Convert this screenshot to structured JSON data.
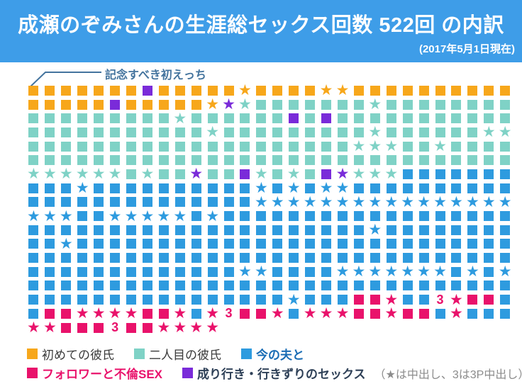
{
  "header": {
    "title": "成瀬のぞみさんの生涯総セックス回数 522回 の内訳",
    "subtitle": "(2017年5月1日現在)",
    "bg_color": "#3E9DE8"
  },
  "annotation": {
    "label": "記念すべき初えっち"
  },
  "colors": {
    "orange": "#F7A71B",
    "teal": "#7FD2C6",
    "blue": "#2E9BDF",
    "pink": "#E9126B",
    "purple": "#7A2BD9",
    "header_blue": "#3E9DE8",
    "annotation_blue": "#44749E",
    "legend_dark": "#3A3A3A",
    "legend_husband": "#1A6DB5",
    "legend_casual": "#2E4057",
    "note_gray": "#8C8C8C"
  },
  "chart_data": {
    "type": "pictogram-waffle",
    "title": "成瀬のぞみさんの生涯総セックス回数 522回 の内訳",
    "as_of": "2017年5月1日現在",
    "total": 522,
    "columns": 30,
    "rows_full": 17,
    "last_row_count": 12,
    "cell_code_legend": {
      "o": "orange square (初めての彼氏)",
      "O": "orange star (初めての彼氏・中出し)",
      "t": "teal square (二人目の彼氏)",
      "T": "teal star (二人目の彼氏・中出し)",
      "b": "blue square (今の夫と)",
      "B": "blue star (今の夫と・中出し)",
      "p": "pink square (フォロワーと不倫SEX)",
      "P": "pink star (フォロワーと不倫SEX・中出し)",
      "v": "purple square (成り行き・行きずりのセックス)",
      "V": "purple star (成り行き・行きずりのセックス・中出し)",
      "3": "pink digit 3 (3P中出し)"
    },
    "rows": [
      "ooooooovoooooOooooOOoooooooooo",
      "ooooovoooooOVTtttttttTtttttttt",
      "tttttttttTttttttvtvttttttttttt",
      "tttttttttttTtttttttttTttttttTT",
      "ttttttttttttttttttttTTTttTtttt",
      "tttttttttttttttttttttttttttttt",
      "TTTTTTtTttVttvTtTtvVTTTbbbbbbb",
      "bbbBbbbbbbbbbbBbBbBBbbbbbbbbbb",
      "bbbbbbbbbbbbbbBBBBBBBBBBBBBBBB",
      "BBBbbBBBBBbBbbbbbbbbbbbbbbbbbb",
      "bbbbbbbbbbbbbbbbbbbbbBbbbbbbbb",
      "bbBbbbbbbbbbbbbbbbbbbbbbbbbbbb",
      "bbbbbbbbbbbbbbbbbbbbbbbbbbbbbb",
      "bbbbbbbbbbbbbBBbbbbBBBBBBBbBbB",
      "bbbbbbbbbbbbbbbbbbbbbbbbbbbbbb",
      "bbbbbbbbbbbbbbbbBbbbppPbb3Pppb",
      "bppPPPPppPbP3ppPbPPPppPppbPbbb",
      "PPppp3ppPPPP"
    ],
    "legend_entries": [
      {
        "label": "初めての彼氏",
        "color_key": "orange"
      },
      {
        "label": "二人目の彼氏",
        "color_key": "teal"
      },
      {
        "label": "今の夫と",
        "color_key": "blue"
      },
      {
        "label": "フォロワーと不倫SEX",
        "color_key": "pink"
      },
      {
        "label": "成り行き・行きずりのセックス",
        "color_key": "purple"
      }
    ],
    "symbol_note": "（★は中出し、3は3P中出し）"
  },
  "legend": {
    "item1": "初めての彼氏",
    "item2": "二人目の彼氏",
    "item3": "今の夫と",
    "item4": "フォロワーと不倫SEX",
    "item5": "成り行き・行きずりのセックス",
    "note": "（★は中出し、3は3P中出し）"
  }
}
